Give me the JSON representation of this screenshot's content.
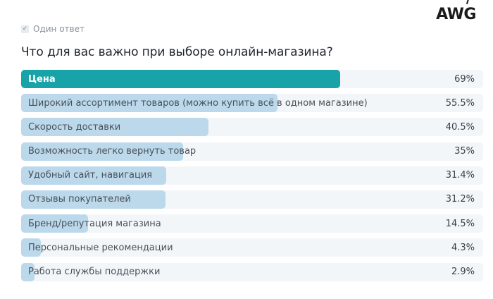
{
  "brand": {
    "logo": "AWG"
  },
  "answer_mode": {
    "label": "Один ответ",
    "checked": true
  },
  "question": "Что для вас важно при выборе онлайн-магазина?",
  "colors": {
    "top_bar": "#17a3a8",
    "bar": "#bcd9ec",
    "track": "#f3f6f9"
  },
  "chart_data": {
    "type": "bar",
    "orientation": "horizontal",
    "title": "Что для вас важно при выборе онлайн-магазина?",
    "unit": "%",
    "xlim": [
      0,
      100
    ],
    "categories": [
      "Цена",
      "Широкий ассортимент товаров (можно купить всё в одном магазине)",
      "Скорость доставки",
      "Возможность легко вернуть товар",
      "Удобный сайт, навигация",
      "Отзывы покупателей",
      "Бренд/репутация магазина",
      "Персональные рекомендации",
      "Работа службы поддержки"
    ],
    "values": [
      69,
      55.5,
      40.5,
      35,
      31.4,
      31.2,
      14.5,
      4.3,
      2.9
    ],
    "value_labels": [
      "69%",
      "55.5%",
      "40.5%",
      "35%",
      "31.4%",
      "31.2%",
      "14.5%",
      "4.3%",
      "2.9%"
    ]
  }
}
